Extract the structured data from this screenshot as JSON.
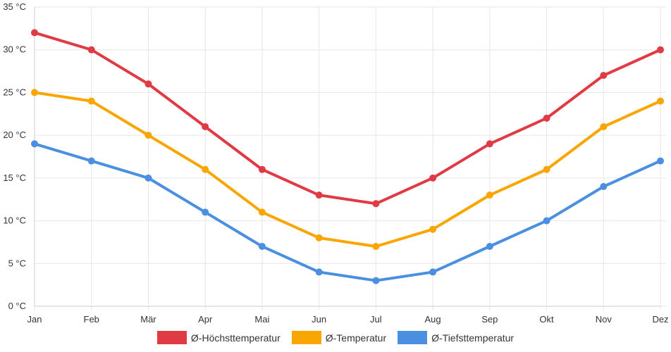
{
  "chart_data": {
    "type": "line",
    "categories": [
      "Jan",
      "Feb",
      "Mär",
      "Apr",
      "Mai",
      "Jun",
      "Jul",
      "Aug",
      "Sep",
      "Okt",
      "Nov",
      "Dez"
    ],
    "ylim": [
      0,
      35
    ],
    "yticks": [
      "0 °C",
      "5 °C",
      "10 °C",
      "15 °C",
      "20 °C",
      "25 °C",
      "30 °C",
      "35 °C"
    ],
    "ytick_values": [
      0,
      5,
      10,
      15,
      20,
      25,
      30,
      35
    ],
    "grid": true,
    "legend_position": "bottom",
    "series": [
      {
        "name": "Ø-Höchsttemperatur",
        "color": "#e03a45",
        "values": [
          32,
          30,
          26,
          21,
          16,
          13,
          12,
          15,
          19,
          22,
          27,
          30
        ]
      },
      {
        "name": "Ø-Temperatur",
        "color": "#f9a602",
        "values": [
          25,
          24,
          20,
          16,
          11,
          8,
          7,
          9,
          13,
          16,
          21,
          24
        ]
      },
      {
        "name": "Ø-Tiefsttemperatur",
        "color": "#4a8fe0",
        "values": [
          19,
          17,
          15,
          11,
          7,
          4,
          3,
          4,
          7,
          10,
          14,
          17
        ]
      }
    ]
  }
}
